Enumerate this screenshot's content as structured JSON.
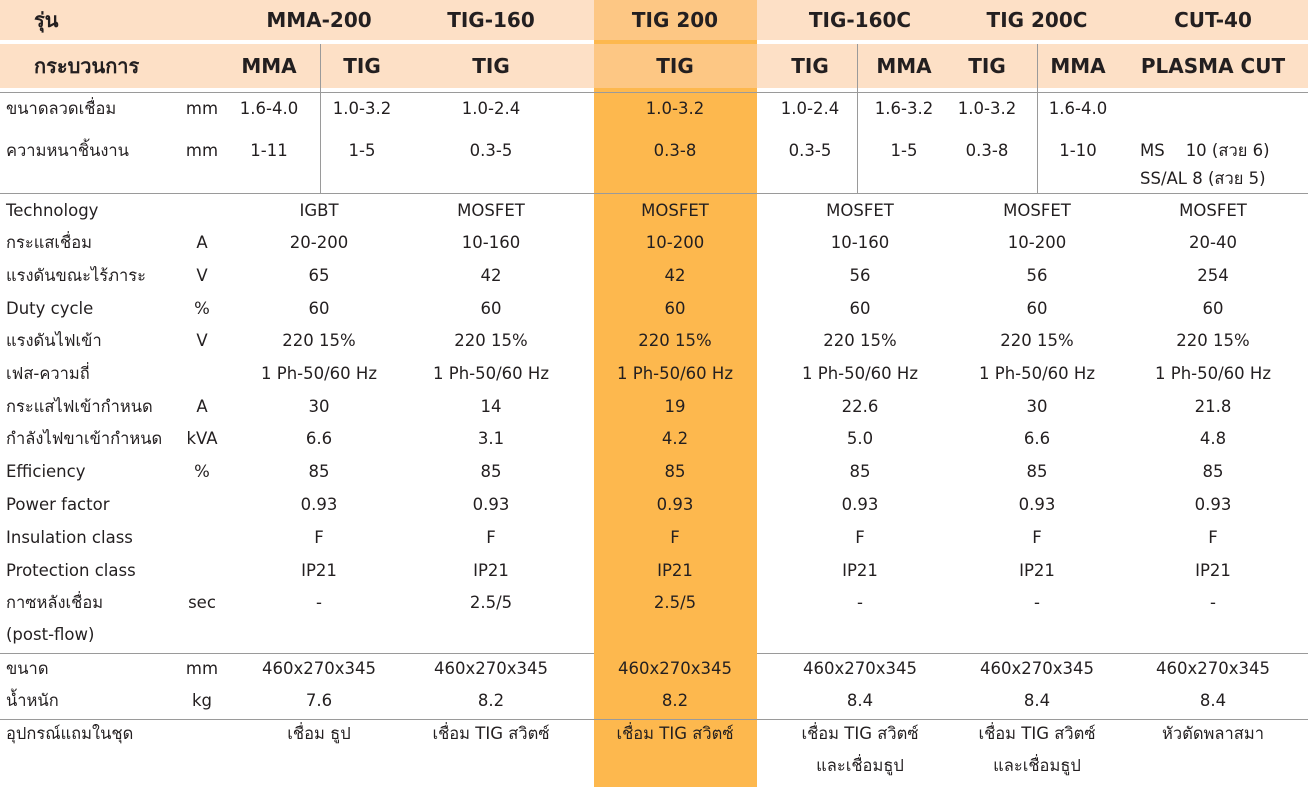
{
  "colors": {
    "header_band": "#fde0c6",
    "highlight_column": "#fdb84e",
    "highlight_header": "#fdc784",
    "rule": "#9a9a9a",
    "text": "#231f20"
  },
  "header": {
    "model_label": "รุ่น",
    "process_label": "กระบวนการ",
    "models": [
      "MMA-200",
      "TIG-160",
      "TIG 200",
      "TIG-160C",
      "TIG 200C",
      "CUT-40"
    ],
    "processes": [
      "MMA",
      "TIG",
      "TIG",
      "TIG",
      "TIG",
      "MMA",
      "TIG",
      "MMA",
      "PLASMA CUT"
    ]
  },
  "rows": [
    {
      "label": "ขนาดลวดเชื่อม",
      "unit": "mm",
      "cells": [
        "1.6-4.0",
        "1.0-3.2",
        "1.0-2.4",
        "1.0-3.2",
        "1.0-2.4",
        "1.6-3.2",
        "1.0-3.2",
        "1.6-4.0",
        ""
      ]
    },
    {
      "label": "ความหนาชิ้นงาน",
      "unit": "mm",
      "cells": [
        "1-11",
        "1-5",
        "0.3-5",
        "0.3-8",
        "0.3-5",
        "1-5",
        "0.3-8",
        "1-10"
      ],
      "cut_line1": "MS    10 (สวย 6)",
      "cut_line2": "SS/AL 8 (สวย 5)"
    },
    {
      "label": "Technology",
      "unit": "",
      "cells": [
        "IGBT",
        "MOSFET",
        "MOSFET",
        "MOSFET",
        "MOSFET",
        "MOSFET"
      ]
    },
    {
      "label": "กระแสเชื่อม",
      "unit": "A",
      "cells": [
        "20-200",
        "10-160",
        "10-200",
        "10-160",
        "10-200",
        "20-40"
      ]
    },
    {
      "label": "แรงดันขณะไร้ภาระ",
      "unit": "V",
      "cells": [
        "65",
        "42",
        "42",
        "56",
        "56",
        "254"
      ]
    },
    {
      "label": "Duty cycle",
      "unit": "%",
      "cells": [
        "60",
        "60",
        "60",
        "60",
        "60",
        "60"
      ]
    },
    {
      "label": "แรงดันไฟเข้า",
      "unit": "V",
      "cells": [
        "220 15%",
        "220 15%",
        "220 15%",
        "220 15%",
        "220 15%",
        "220 15%"
      ]
    },
    {
      "label": "เฟส-ความถี่",
      "unit": "",
      "cells": [
        "1 Ph-50/60 Hz",
        "1 Ph-50/60 Hz",
        "1 Ph-50/60 Hz",
        "1 Ph-50/60 Hz",
        "1 Ph-50/60 Hz",
        "1 Ph-50/60 Hz"
      ]
    },
    {
      "label": "กระแสไฟเข้ากำหนด",
      "unit": "A",
      "cells": [
        "30",
        "14",
        "19",
        "22.6",
        "30",
        "21.8"
      ]
    },
    {
      "label": "กำลังไฟขาเข้ากำหนด",
      "unit": "kVA",
      "cells": [
        "6.6",
        "3.1",
        "4.2",
        "5.0",
        "6.6",
        "4.8"
      ]
    },
    {
      "label": "Efficiency",
      "unit": "%",
      "cells": [
        "85",
        "85",
        "85",
        "85",
        "85",
        "85"
      ]
    },
    {
      "label": "Power factor",
      "unit": "",
      "cells": [
        "0.93",
        "0.93",
        "0.93",
        "0.93",
        "0.93",
        "0.93"
      ]
    },
    {
      "label": "Insulation class",
      "unit": "",
      "cells": [
        "F",
        "F",
        "F",
        "F",
        "F",
        "F"
      ]
    },
    {
      "label": "Protection class",
      "unit": "",
      "cells": [
        "IP21",
        "IP21",
        "IP21",
        "IP21",
        "IP21",
        "IP21"
      ]
    },
    {
      "label": "กาซหลังเชื่อม",
      "label2": "(post-flow)",
      "unit": "sec",
      "cells": [
        "-",
        "2.5/5",
        "2.5/5",
        "-",
        "-",
        "-"
      ]
    },
    {
      "label": "ขนาด",
      "unit": "mm",
      "cells": [
        "460x270x345",
        "460x270x345",
        "460x270x345",
        "460x270x345",
        "460x270x345",
        "460x270x345"
      ]
    },
    {
      "label": "น้ำหนัก",
      "unit": "kg",
      "cells": [
        "7.6",
        "8.2",
        "8.2",
        "8.4",
        "8.4",
        "8.4"
      ]
    },
    {
      "label": "อุปกรณ์แถมในชุด",
      "unit": "",
      "cells": [
        "เชื่อม ธูป",
        "เชื่อม TIG สวิตซ์",
        "เชื่อม TIG สวิตซ์",
        "เชื่อม TIG สวิตซ์",
        "เชื่อม TIG สวิตซ์",
        "หัวตัดพลาสมา"
      ],
      "cells_line2": [
        "",
        "",
        "",
        "และเชื่อมธูป",
        "และเชื่อมธูป",
        ""
      ]
    }
  ]
}
